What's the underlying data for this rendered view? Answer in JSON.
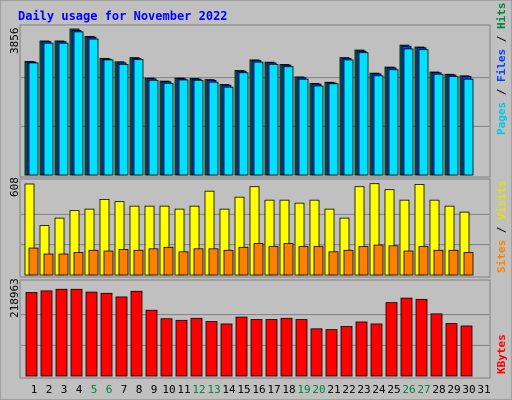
{
  "title": "Daily usage for November 2022",
  "colors": {
    "background": "#C0C0C0",
    "plot_bg": "#C0C0C0",
    "hits": "#008040",
    "files": "#0040FF",
    "pages": "#00E0FF",
    "visits": "#FFFF00",
    "sites": "#FF8000",
    "kbytes": "#FF0000",
    "title_text": "#0000FF",
    "weekend_text": "#008040"
  },
  "panels": {
    "hits": {
      "max_label": "3856",
      "legend": [
        "Pages",
        "Files",
        "Hits"
      ]
    },
    "visits": {
      "max_label": "608",
      "legend": [
        "Sites",
        "Visits"
      ]
    },
    "kbytes": {
      "max_label": "218963",
      "legend": [
        "KBytes"
      ]
    }
  },
  "day_labels": [
    "1",
    "2",
    "3",
    "4",
    "5",
    "6",
    "7",
    "8",
    "9",
    "10",
    "11",
    "12",
    "13",
    "14",
    "15",
    "16",
    "17",
    "18",
    "19",
    "20",
    "21",
    "22",
    "23",
    "24",
    "25",
    "26",
    "27",
    "28",
    "29",
    "30",
    "31"
  ],
  "weekend_days": [
    5,
    6,
    12,
    13,
    19,
    20,
    26,
    27
  ],
  "chart_data": [
    {
      "type": "bar",
      "title": "Daily usage for November 2022",
      "ylabel": "Pages / Files / Hits",
      "ylim": [
        0,
        3856
      ],
      "categories": [
        "1",
        "2",
        "3",
        "4",
        "5",
        "6",
        "7",
        "8",
        "9",
        "10",
        "11",
        "12",
        "13",
        "14",
        "15",
        "16",
        "17",
        "18",
        "19",
        "20",
        "21",
        "22",
        "23",
        "24",
        "25",
        "26",
        "27",
        "28",
        "29",
        "30",
        "31"
      ],
      "series": [
        {
          "name": "Hits",
          "values": [
            3000,
            3540,
            3540,
            3856,
            3660,
            3080,
            2990,
            3100,
            2560,
            2480,
            2560,
            2550,
            2520,
            2390,
            2760,
            3040,
            2980,
            2920,
            2590,
            2420,
            2450,
            3100,
            3300,
            2690,
            2850,
            3430,
            3380,
            2720,
            2660,
            2620,
            0
          ]
        },
        {
          "name": "Files",
          "values": [
            2980,
            3520,
            3520,
            3820,
            3640,
            3060,
            2960,
            3080,
            2540,
            2460,
            2540,
            2530,
            2500,
            2370,
            2740,
            3020,
            2960,
            2900,
            2570,
            2400,
            2430,
            3080,
            3270,
            2670,
            2830,
            3400,
            3360,
            2700,
            2640,
            2600,
            0
          ]
        },
        {
          "name": "Pages",
          "values": [
            2960,
            3480,
            3480,
            3780,
            3590,
            3040,
            2920,
            3050,
            2500,
            2420,
            2510,
            2500,
            2450,
            2320,
            2700,
            2980,
            2920,
            2860,
            2530,
            2350,
            2410,
            3040,
            3230,
            2620,
            2780,
            3330,
            3310,
            2660,
            2600,
            2530,
            0
          ]
        }
      ]
    },
    {
      "type": "bar",
      "ylabel": "Sites / Visits",
      "ylim": [
        0,
        608
      ],
      "categories": [
        "1",
        "2",
        "3",
        "4",
        "5",
        "6",
        "7",
        "8",
        "9",
        "10",
        "11",
        "12",
        "13",
        "14",
        "15",
        "16",
        "17",
        "18",
        "19",
        "20",
        "21",
        "22",
        "23",
        "24",
        "25",
        "26",
        "27",
        "28",
        "29",
        "30",
        "31"
      ],
      "series": [
        {
          "name": "Visits",
          "values": [
            608,
            330,
            380,
            430,
            440,
            505,
            490,
            460,
            460,
            460,
            440,
            460,
            560,
            440,
            520,
            590,
            500,
            500,
            480,
            500,
            440,
            380,
            590,
            610,
            570,
            500,
            605,
            500,
            460,
            420,
            0
          ]
        },
        {
          "name": "Sites",
          "values": [
            180,
            140,
            140,
            150,
            165,
            160,
            170,
            165,
            175,
            185,
            155,
            175,
            175,
            165,
            185,
            210,
            190,
            210,
            190,
            190,
            155,
            165,
            190,
            200,
            195,
            160,
            190,
            165,
            165,
            150,
            0
          ]
        }
      ]
    },
    {
      "type": "bar",
      "ylabel": "KBytes",
      "ylim": [
        0,
        218963
      ],
      "categories": [
        "1",
        "2",
        "3",
        "4",
        "5",
        "6",
        "7",
        "8",
        "9",
        "10",
        "11",
        "12",
        "13",
        "14",
        "15",
        "16",
        "17",
        "18",
        "19",
        "20",
        "21",
        "22",
        "23",
        "24",
        "25",
        "26",
        "27",
        "28",
        "29",
        "30",
        "31"
      ],
      "series": [
        {
          "name": "KBytes",
          "values": [
            207000,
            211000,
            215000,
            215000,
            208000,
            205000,
            196000,
            210000,
            163000,
            142000,
            138000,
            143000,
            135000,
            129000,
            146000,
            140000,
            140000,
            143000,
            140000,
            117000,
            115000,
            123000,
            134000,
            129000,
            182000,
            193000,
            190000,
            154000,
            130000,
            124000,
            0
          ]
        }
      ]
    }
  ]
}
